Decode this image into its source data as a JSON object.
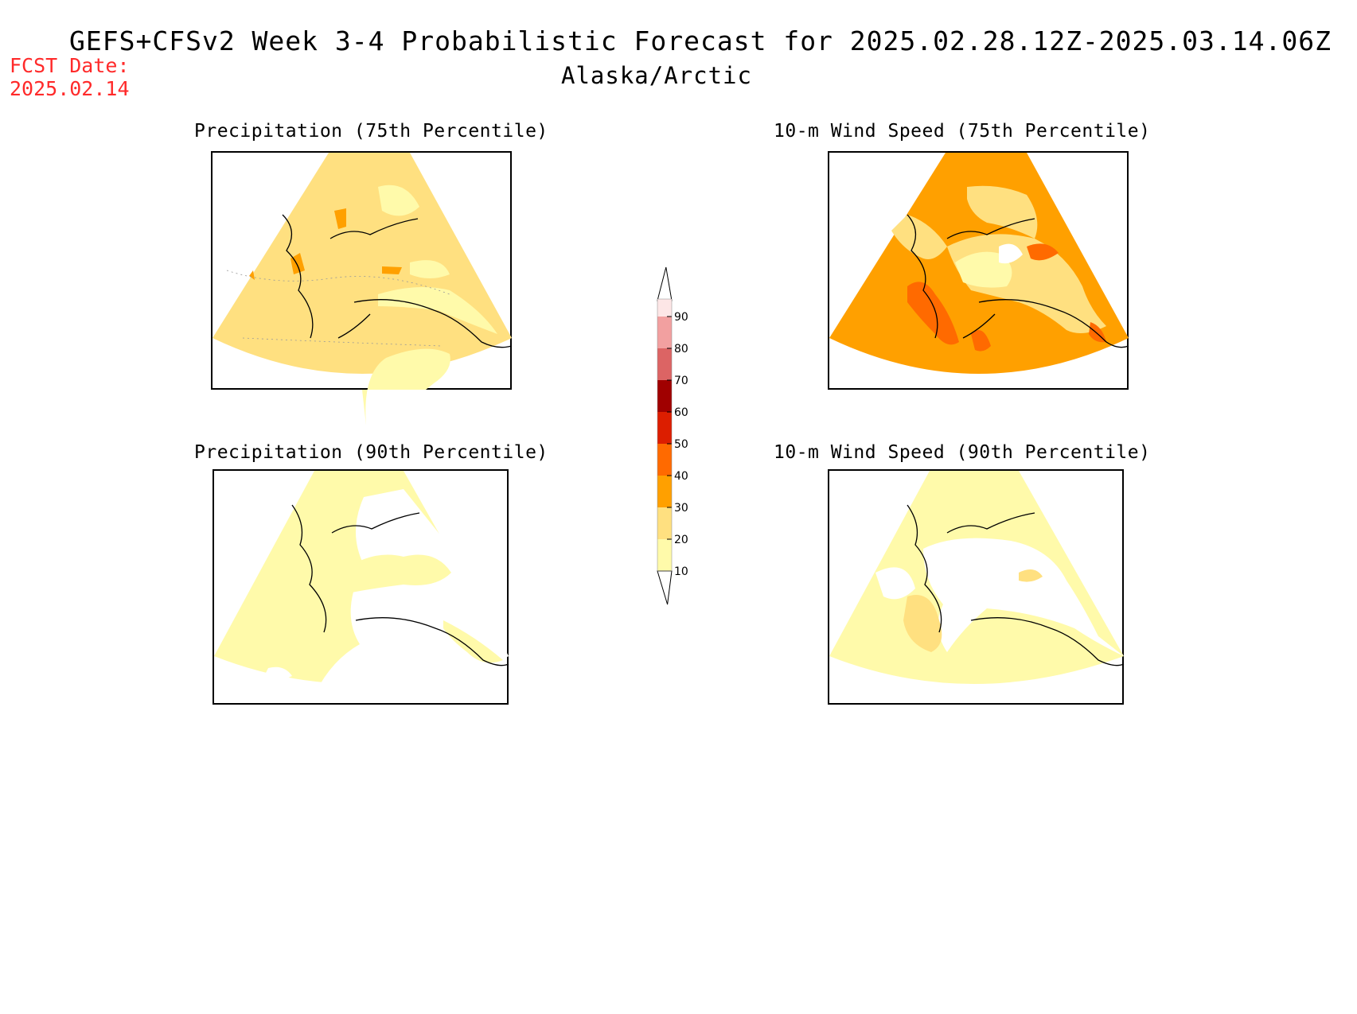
{
  "title": "GEFS+CFSv2 Week 3-4 Probabilistic Forecast for 2025.02.28.12Z-2025.03.14.06Z",
  "subtitle": "Alaska/Arctic",
  "fcst_date_label": "FCST Date:",
  "fcst_date_value": "2025.02.14",
  "panels": [
    {
      "title": "Precipitation (75th Percentile)",
      "dominant_level": 20
    },
    {
      "title": "10-m Wind Speed (75th Percentile)",
      "dominant_level": 30
    },
    {
      "title": "Precipitation (90th Percentile)",
      "dominant_level": 10
    },
    {
      "title": "10-m Wind Speed (90th Percentile)",
      "dominant_level": 10
    }
  ],
  "legend": {
    "ticks": [
      "90",
      "80",
      "70",
      "60",
      "50",
      "40",
      "30",
      "20",
      "10"
    ],
    "colors": [
      "#fde6e6",
      "#f2a0a0",
      "#dc6464",
      "#a00000",
      "#dc1e00",
      "#ff6a00",
      "#ffa000",
      "#ffe080",
      "#fffaaa"
    ]
  },
  "colors": {
    "fcst_date": "#ff2a2a",
    "level_10": "#fffaaa",
    "level_20": "#ffe080",
    "level_30": "#ffa000",
    "level_40": "#ff6a00",
    "level_50": "#dc1e00"
  }
}
